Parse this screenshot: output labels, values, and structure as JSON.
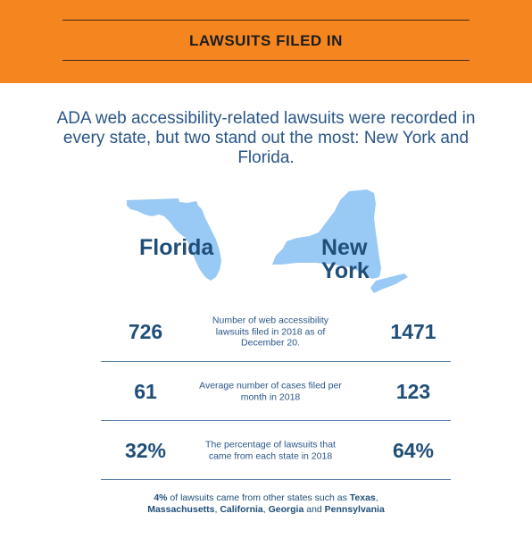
{
  "banner": {
    "title": "LAWSUITS FILED IN"
  },
  "intro": {
    "text": "ADA web accessibility-related lawsuits were recorded in every state, but two stand out the most: New York and Florida."
  },
  "states": {
    "florida_label": "Florida",
    "newyork_label_1": "New",
    "newyork_label_2": "York",
    "map_color": "#99c9f5"
  },
  "stats": [
    {
      "left": "726",
      "desc": "Number of web accessibility lawsuits filed in 2018 as of December 20.",
      "right": "1471"
    },
    {
      "left": "61",
      "desc": "Average number of cases filed per month in 2018",
      "right": "123"
    },
    {
      "left": "32%",
      "desc": "The percentage of lawsuits that came from each state in 2018",
      "right": "64%"
    }
  ],
  "footnote": {
    "pct": "4%",
    "text1": " of lawsuits came from other states such as ",
    "texas": "Texas",
    "comma1": ",",
    "mass": "Massachusetts",
    "comma2": ", ",
    "california": "California",
    "comma3": ", ",
    "georgia": "Georgia",
    "and": " and ",
    "penn": "Pennsylvania"
  }
}
